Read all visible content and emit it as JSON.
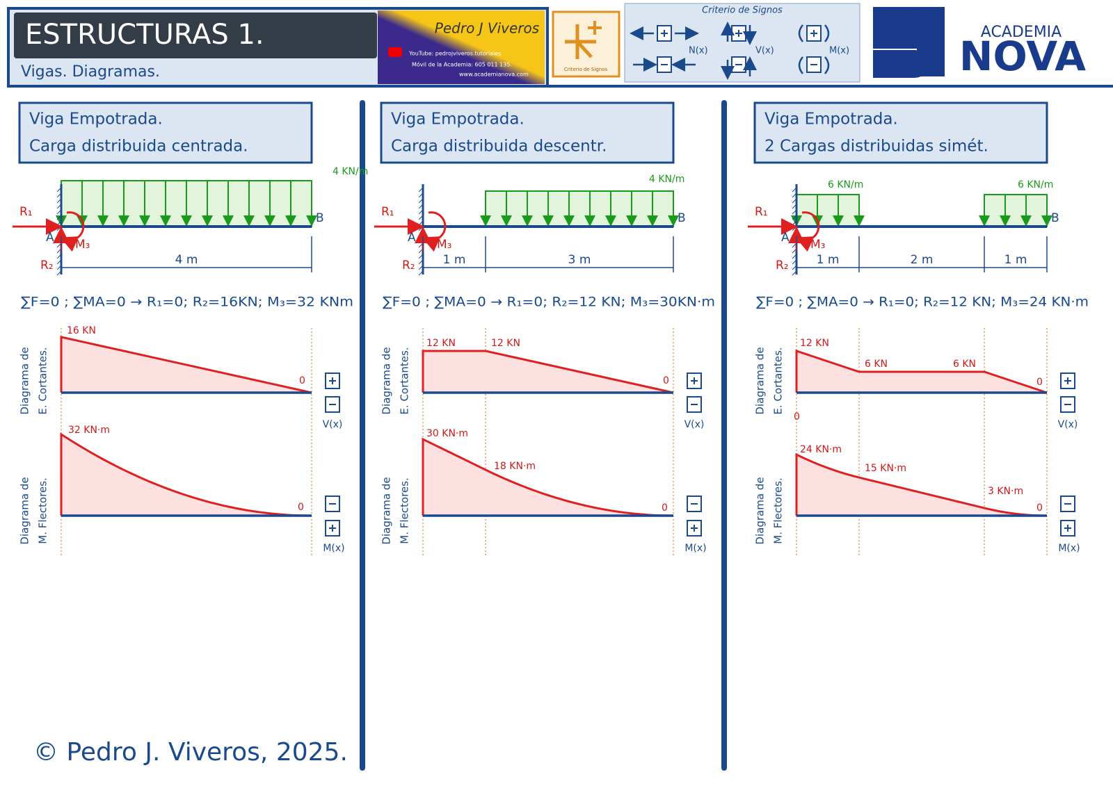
{
  "header": {
    "title": "ESTRUCTURAS 1.",
    "subtitle": "Vigas. Diagramas.",
    "author": "Pedro J Viveros",
    "youtube": "YouTube: pedrojviveros.tutoriales",
    "phone": "Móvil de la Academia: 605 011 135.",
    "web": "www.academianova.com",
    "sign_icon_label": "Criterio de Signos",
    "sign_title": "Criterio de Signos",
    "sign_labels": [
      "N(x)",
      "V(x)",
      "M(x)"
    ],
    "academy": [
      "ACADEMIA",
      "NOVA"
    ]
  },
  "panels": [
    {
      "title": [
        "Viga Empotrada.",
        "Carga distribuida centrada."
      ],
      "loads": [
        "4 KN/m"
      ],
      "supports": [
        "R₁",
        "R₂",
        "M₃",
        "A",
        "B"
      ],
      "dimensions": [
        "4 m"
      ],
      "equation": "∑F=0 ; ∑MA=0 → R₁=0; R₂=16KN; M₃=32 KNm",
      "shear_label": [
        "Diagrama de",
        "E. Cortantes."
      ],
      "shear_values": [
        "16 KN",
        "0"
      ],
      "moment_label": [
        "Diagrama de",
        "M. Flectores."
      ],
      "moment_values": [
        "32 KN·m",
        "0"
      ],
      "v_label": "V(x)",
      "m_label": "M(x)"
    },
    {
      "title": [
        "Viga Empotrada.",
        "Carga distribuida descentr."
      ],
      "loads": [
        "4 KN/m"
      ],
      "supports": [
        "R₁",
        "R₂",
        "M₃",
        "A",
        "B"
      ],
      "dimensions": [
        "1 m",
        "3 m"
      ],
      "equation": "∑F=0 ; ∑MA=0 → R₁=0; R₂=12 KN; M₃=30KN·m",
      "shear_label": [
        "Diagrama de",
        "E. Cortantes."
      ],
      "shear_values": [
        "12 KN",
        "12 KN",
        "0"
      ],
      "moment_label": [
        "Diagrama de",
        "M. Flectores."
      ],
      "moment_values": [
        "30 KN·m",
        "18 KN·m",
        "0"
      ],
      "v_label": "V(x)",
      "m_label": "M(x)"
    },
    {
      "title": [
        "Viga Empotrada.",
        "2 Cargas distribuidas simét."
      ],
      "loads": [
        "6 KN/m",
        "6 KN/m"
      ],
      "supports": [
        "R₁",
        "R₂",
        "M₃",
        "A",
        "B"
      ],
      "dimensions": [
        "1 m",
        "2 m",
        "1 m"
      ],
      "equation": "∑F=0 ; ∑MA=0 → R₁=0; R₂=12 KN; M₃=24 KN·m",
      "shear_label": [
        "Diagrama de",
        "E. Cortantes."
      ],
      "shear_values": [
        "12 KN",
        "6 KN",
        "6 KN",
        "0",
        "0"
      ],
      "moment_label": [
        "Diagrama de",
        "M. Flectores."
      ],
      "moment_values": [
        "24 KN·m",
        "15 KN·m",
        "3 KN·m",
        "0"
      ],
      "v_label": "V(x)",
      "m_label": "M(x)"
    }
  ],
  "footer": "© Pedro J. Viveros, 2025."
}
